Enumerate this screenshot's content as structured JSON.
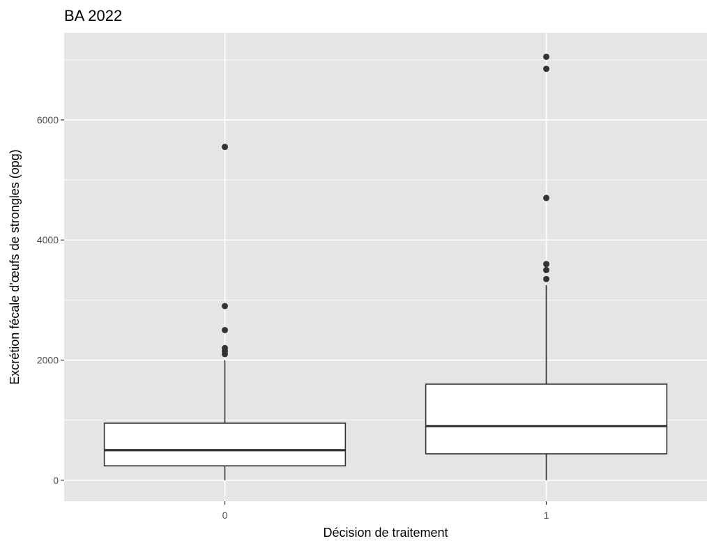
{
  "chart_data": {
    "type": "boxplot",
    "title": "BA 2022",
    "xlabel": "Décision de traitement",
    "ylabel": "Excrétion fécale d'œufs de strongles (opg)",
    "categories": [
      "0",
      "1"
    ],
    "ylim": [
      -350,
      7450
    ],
    "yticks": [
      0,
      2000,
      4000,
      6000
    ],
    "ytick_labels": [
      "0",
      "2000",
      "4000",
      "6000"
    ],
    "grid": true,
    "background": "#e5e5e5",
    "boxes": [
      {
        "category": "0",
        "whisker_low": 0,
        "q1": 240,
        "median": 500,
        "q3": 950,
        "whisker_high": 2000,
        "outliers": [
          2100,
          2150,
          2200,
          2500,
          2900,
          5550
        ]
      },
      {
        "category": "1",
        "whisker_low": 0,
        "q1": 440,
        "median": 900,
        "q3": 1600,
        "whisker_high": 3250,
        "outliers": [
          3350,
          3500,
          3600,
          4700,
          6850,
          7050
        ]
      }
    ]
  }
}
